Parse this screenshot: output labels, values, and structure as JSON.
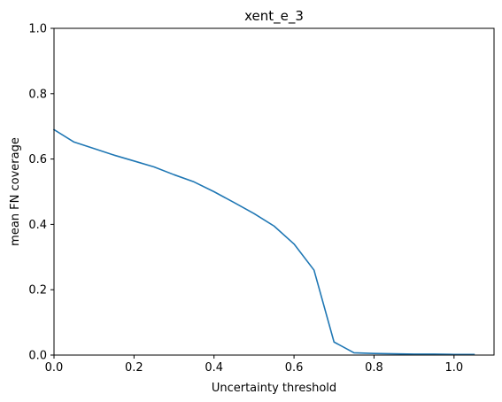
{
  "chart_data": {
    "type": "line",
    "title": "xent_e_3",
    "xlabel": "Uncertainty threshold",
    "ylabel": "mean FN coverage",
    "xlim": [
      0,
      1.1
    ],
    "ylim": [
      0,
      1
    ],
    "xticks": [
      0,
      0.2,
      0.4,
      0.6,
      0.8,
      1.0
    ],
    "xtick_labels": [
      "0.0",
      "0.2",
      "0.4",
      "0.6",
      "0.8",
      "1.0"
    ],
    "yticks": [
      0,
      0.2,
      0.4,
      0.6,
      0.8,
      1.0
    ],
    "ytick_labels": [
      "0.0",
      "0.2",
      "0.4",
      "0.6",
      "0.8",
      "1.0"
    ],
    "grid": false,
    "legend": "none",
    "series": [
      {
        "color": "#1f77b4",
        "x": [
          0.0,
          0.05,
          0.1,
          0.15,
          0.2,
          0.25,
          0.3,
          0.35,
          0.4,
          0.45,
          0.5,
          0.55,
          0.6,
          0.65,
          0.7,
          0.75,
          0.8,
          0.85,
          0.9,
          0.95,
          1.0,
          1.05
        ],
        "y": [
          0.69,
          0.652,
          0.632,
          0.612,
          0.594,
          0.576,
          0.552,
          0.53,
          0.5,
          0.467,
          0.433,
          0.395,
          0.34,
          0.26,
          0.04,
          0.007,
          0.005,
          0.004,
          0.003,
          0.003,
          0.002,
          0.002
        ]
      }
    ]
  }
}
